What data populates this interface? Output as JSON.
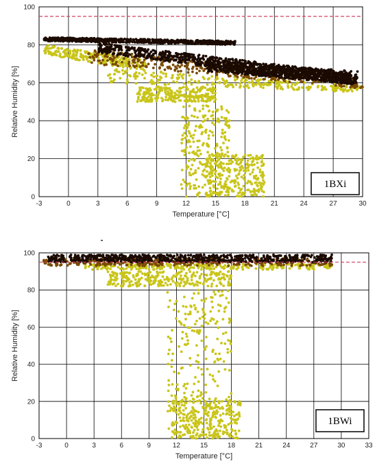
{
  "chart_data": [
    {
      "type": "scatter",
      "tag": "1BXi",
      "xlabel": "Temperature [°C]",
      "ylabel": "Relative Humidity [%]",
      "xlim": [
        -3,
        30
      ],
      "ylim": [
        0,
        100
      ],
      "xticks": [
        -3,
        0,
        3,
        6,
        9,
        12,
        15,
        18,
        21,
        24,
        27,
        30
      ],
      "yticks": [
        0,
        20,
        40,
        60,
        80,
        100
      ],
      "grid": true,
      "reference_line": {
        "y": 95,
        "color": "#d04060",
        "style": "dashed"
      },
      "colors": {
        "dense": "#1a0a00",
        "mid": "#7a4a00",
        "sparse": "#c9c51a"
      },
      "point_clouds": [
        {
          "density": "dense",
          "x": [
            -2.5,
            17
          ],
          "y_start": [
            82,
            84
          ],
          "y_end": [
            80,
            82
          ]
        },
        {
          "density": "dense",
          "x": [
            3,
            29
          ],
          "y_start": [
            76,
            81
          ],
          "y_end": [
            59,
            65
          ]
        },
        {
          "density": "dense",
          "x": [
            14,
            29.5
          ],
          "y_start": [
            66,
            72
          ],
          "y_end": [
            59,
            66
          ]
        },
        {
          "density": "mid",
          "x": [
            2,
            30
          ],
          "y_start": [
            70,
            78
          ],
          "y_end": [
            57,
            62
          ]
        },
        {
          "density": "sparse",
          "x": [
            -2.5,
            8
          ],
          "y_start": [
            75,
            80
          ],
          "y_end": [
            66,
            72
          ]
        },
        {
          "density": "sparse",
          "x": [
            4,
            30
          ],
          "y_start": [
            60,
            68
          ],
          "y_end": [
            55,
            58
          ]
        },
        {
          "density": "sparse",
          "x": [
            7,
            15
          ],
          "y_start": [
            50,
            58
          ],
          "y_end": [
            50,
            58
          ]
        },
        {
          "density": "sparse",
          "x": [
            11.5,
            16.5
          ],
          "y_start": [
            0,
            48
          ],
          "y_end": [
            0,
            48
          ]
        },
        {
          "density": "sparse",
          "x": [
            14,
            20
          ],
          "y_start": [
            0,
            22
          ],
          "y_end": [
            0,
            22
          ]
        }
      ]
    },
    {
      "type": "scatter",
      "tag": "1BWi",
      "xlabel": "Temperature [°C]",
      "ylabel": "Relative Humidity [%]",
      "xlim": [
        -3,
        33
      ],
      "ylim": [
        0,
        100
      ],
      "xticks": [
        -3,
        0,
        3,
        6,
        9,
        12,
        15,
        18,
        21,
        24,
        27,
        30,
        33
      ],
      "yticks": [
        0,
        20,
        40,
        60,
        80,
        100
      ],
      "grid": true,
      "reference_line": {
        "y": 95,
        "color": "#d04060",
        "style": "dashed"
      },
      "colors": {
        "dense": "#1a0a00",
        "mid": "#7a4a00",
        "sparse": "#c9c51a"
      },
      "point_clouds": [
        {
          "density": "dense",
          "x": [
            -2,
            29
          ],
          "y_start": [
            95,
            99
          ],
          "y_end": [
            95,
            99
          ]
        },
        {
          "density": "mid",
          "x": [
            -2.5,
            29
          ],
          "y_start": [
            93,
            97
          ],
          "y_end": [
            93,
            97
          ]
        },
        {
          "density": "sparse",
          "x": [
            2,
            29
          ],
          "y_start": [
            91,
            94
          ],
          "y_end": [
            91,
            94
          ]
        },
        {
          "density": "sparse",
          "x": [
            4.5,
            18
          ],
          "y_start": [
            82,
            90
          ],
          "y_end": [
            82,
            90
          ]
        },
        {
          "density": "sparse",
          "x": [
            11,
            18
          ],
          "y_start": [
            0,
            80
          ],
          "y_end": [
            0,
            80
          ]
        },
        {
          "density": "sparse",
          "x": [
            11.5,
            19
          ],
          "y_start": [
            0,
            22
          ],
          "y_end": [
            0,
            22
          ]
        }
      ]
    }
  ]
}
